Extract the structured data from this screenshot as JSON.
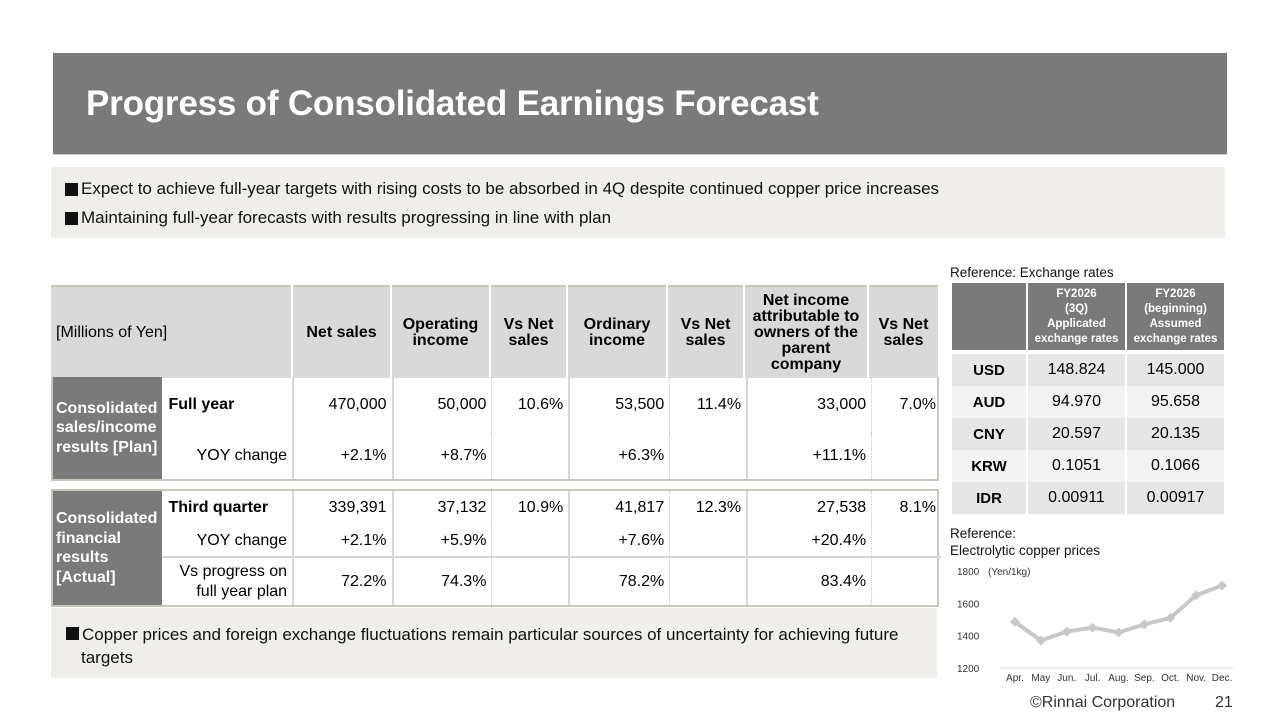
{
  "title": "Progress of Consolidated Earnings Forecast",
  "summary": [
    "Expect to achieve full-year targets with rising costs to be absorbed in 4Q despite continued copper price increases",
    "Maintaining full-year forecasts with results progressing in line with plan"
  ],
  "main_table": {
    "unit_label": "[Millions of Yen]",
    "headers": [
      "Net sales",
      "Operating income",
      "Vs Net sales",
      "Ordinary income",
      "Vs Net sales",
      "Net income attributable to owners of the parent company",
      "Vs Net sales"
    ],
    "plan_group": {
      "label": "Consolidated sales/income results [Plan]",
      "rows": [
        {
          "label": "Full year",
          "values": [
            "470,000",
            "50,000",
            "10.6%",
            "53,500",
            "11.4%",
            "33,000",
            "7.0%"
          ]
        },
        {
          "label": "YOY change",
          "values": [
            "+2.1%",
            "+8.7%",
            "",
            "+6.3%",
            "",
            "+11.1%",
            ""
          ]
        }
      ]
    },
    "actual_group": {
      "label": "Consolidated financial results [Actual]",
      "rows": [
        {
          "label": "Third quarter",
          "values": [
            "339,391",
            "37,132",
            "10.9%",
            "41,817",
            "12.3%",
            "27,538",
            "8.1%"
          ]
        },
        {
          "label": "YOY change",
          "values": [
            "+2.1%",
            "+5.9%",
            "",
            "+7.6%",
            "",
            "+20.4%",
            ""
          ]
        },
        {
          "label": "Vs progress on full year plan",
          "values": [
            "72.2%",
            "74.3%",
            "",
            "78.2%",
            "",
            "83.4%",
            ""
          ]
        }
      ]
    }
  },
  "note": "Copper prices and foreign exchange fluctuations remain particular sources of uncertainty for achieving future targets",
  "exchange_rates": {
    "caption": "Reference: Exchange rates",
    "headers": [
      "",
      "FY2026 (3Q) Applicated exchange rates",
      "FY2026 (beginning) Assumed exchange rates"
    ],
    "header_lines": [
      [],
      [
        "FY2026",
        "(3Q)",
        "Applicated",
        "exchange rates"
      ],
      [
        "FY2026",
        "(beginning)",
        "Assumed",
        "exchange rates"
      ]
    ],
    "rows": [
      {
        "currency": "USD",
        "applicated": "148.824",
        "assumed": "145.000"
      },
      {
        "currency": "AUD",
        "applicated": "94.970",
        "assumed": "95.658"
      },
      {
        "currency": "CNY",
        "applicated": "20.597",
        "assumed": "20.135"
      },
      {
        "currency": "KRW",
        "applicated": "0.1051",
        "assumed": "0.1066"
      },
      {
        "currency": "IDR",
        "applicated": "0.00911",
        "assumed": "0.00917"
      }
    ]
  },
  "copper": {
    "caption_line1": "Reference:",
    "caption_line2": "Electrolytic copper prices"
  },
  "chart_data": {
    "type": "line",
    "title": "Electrolytic copper prices",
    "ylabel": "(Yen/1kg)",
    "xlabel": "",
    "categories": [
      "Apr.",
      "May",
      "Jun.",
      "Jul.",
      "Aug.",
      "Sep.",
      "Oct.",
      "Nov.",
      "Dec."
    ],
    "series": [
      {
        "name": "Electrolytic copper price",
        "values": [
          1485,
          1370,
          1425,
          1450,
          1420,
          1470,
          1510,
          1650,
          1710
        ],
        "color": "#c8c8c8"
      }
    ],
    "ylim": [
      1200,
      1800
    ],
    "yticks": [
      1200,
      1400,
      1600,
      1800
    ],
    "grid": false,
    "legend": "none"
  },
  "footer": {
    "copyright": "©Rinnai Corporation",
    "page": "21"
  },
  "colors": {
    "banner": "#7a7a7a",
    "summary_bg": "#efeeea",
    "header_gray": "#d9d9d9",
    "line": "#c8c8c8"
  }
}
